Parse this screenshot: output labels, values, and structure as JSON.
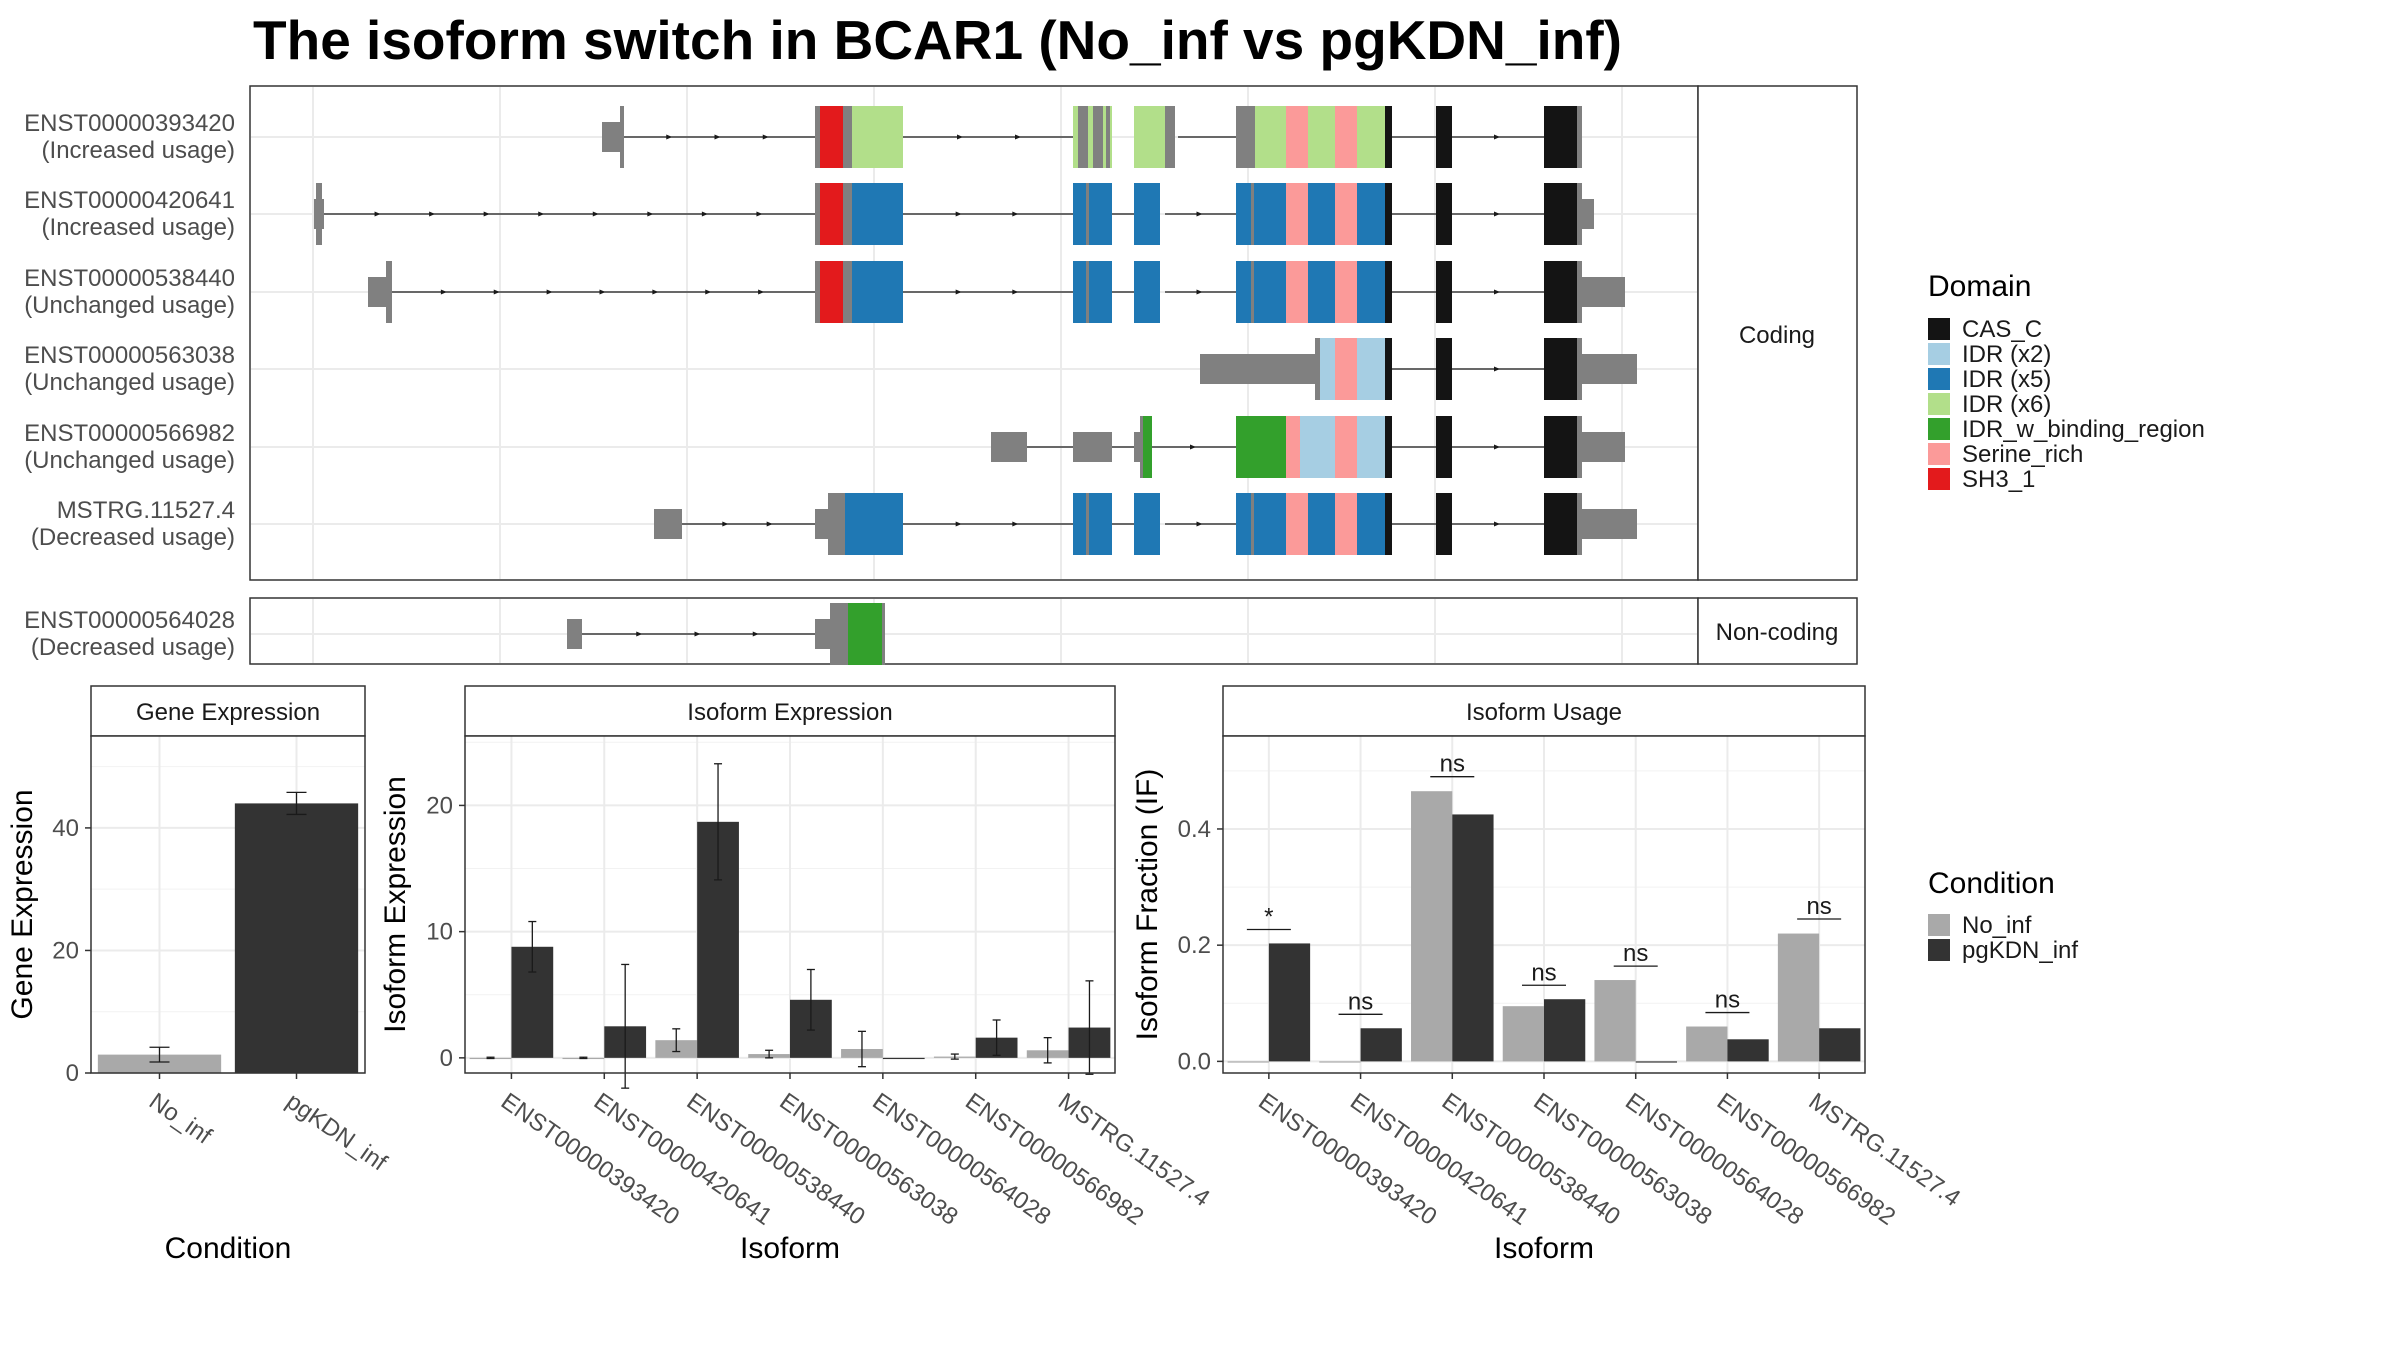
{
  "title": "The isoform switch in BCAR1 (No_inf vs pgKDN_inf)",
  "colors": {
    "exon_gray": "#808080",
    "domains": {
      "CAS_C": "#141414",
      "IDR (x2)": "#A6CEE3",
      "IDR (x5)": "#1F78B4",
      "IDR (x6)": "#B2DF8A",
      "IDR_w_binding_region": "#33A02C",
      "Serine_rich": "#FB9A99",
      "SH3_1": "#E31A1C"
    },
    "conditions": {
      "No_inf": "#A9A9A9",
      "pgKDN_inf": "#333333"
    }
  },
  "structure": {
    "facets": [
      "Coding",
      "Non-coding"
    ],
    "isoforms": [
      {
        "id": "ENST00000393420",
        "usage": "(Increased usage)",
        "facet": "Coding"
      },
      {
        "id": "ENST00000420641",
        "usage": "(Increased usage)",
        "facet": "Coding"
      },
      {
        "id": "ENST00000538440",
        "usage": "(Unchanged usage)",
        "facet": "Coding"
      },
      {
        "id": "ENST00000563038",
        "usage": "(Unchanged usage)",
        "facet": "Coding"
      },
      {
        "id": "ENST00000566982",
        "usage": "(Unchanged usage)",
        "facet": "Coding"
      },
      {
        "id": "MSTRG.11527.4",
        "usage": "(Decreased usage)",
        "facet": "Coding"
      },
      {
        "id": "ENST00000564028",
        "usage": "(Decreased usage)",
        "facet": "Non-coding"
      }
    ]
  },
  "legend_domain": {
    "title": "Domain",
    "items": [
      "CAS_C",
      "IDR (x2)",
      "IDR (x5)",
      "IDR (x6)",
      "IDR_w_binding_region",
      "Serine_rich",
      "SH3_1"
    ]
  },
  "legend_condition": {
    "title": "Condition",
    "items": [
      "No_inf",
      "pgKDN_inf"
    ]
  },
  "chart_data": [
    {
      "type": "bar",
      "panel": "Gene Expression",
      "categories": [
        "No_inf",
        "pgKDN_inf"
      ],
      "values": [
        3.0,
        44.0
      ],
      "errors": [
        1.2,
        1.8
      ],
      "xlabel": "Condition",
      "ylabel": "Gene Expression",
      "ylim": [
        0,
        55
      ],
      "yticks": [
        0,
        20,
        40
      ]
    },
    {
      "type": "bar",
      "panel": "Isoform Expression",
      "categories": [
        "ENST00000393420",
        "ENST00000420641",
        "ENST00000538440",
        "ENST00000563038",
        "ENST00000564028",
        "ENST00000566982",
        "MSTRG.11527.4"
      ],
      "series": [
        {
          "name": "No_inf",
          "values": [
            0.0,
            0.0,
            1.4,
            0.3,
            0.7,
            0.1,
            0.6
          ],
          "errors": [
            0.05,
            0.05,
            0.9,
            0.3,
            1.4,
            0.2,
            1.0
          ]
        },
        {
          "name": "pgKDN_inf",
          "values": [
            8.8,
            2.5,
            18.7,
            4.6,
            0.0,
            1.6,
            2.4
          ],
          "errors": [
            2.0,
            4.9,
            4.6,
            2.4,
            0.0,
            1.4,
            3.7
          ]
        }
      ],
      "xlabel": "Isoform",
      "ylabel": "Isoform Expression",
      "ylim": [
        -1.2,
        25.5
      ],
      "yticks": [
        0,
        10,
        20
      ]
    },
    {
      "type": "bar",
      "panel": "Isoform Usage",
      "categories": [
        "ENST00000393420",
        "ENST00000420641",
        "ENST00000538440",
        "ENST00000563038",
        "ENST00000564028",
        "ENST00000566982",
        "MSTRG.11527.4"
      ],
      "series": [
        {
          "name": "No_inf",
          "values": [
            0.0,
            0.0,
            0.465,
            0.095,
            0.14,
            0.06,
            0.22
          ]
        },
        {
          "name": "pgKDN_inf",
          "values": [
            0.203,
            0.057,
            0.425,
            0.107,
            0.0,
            0.038,
            0.057
          ]
        }
      ],
      "significance": [
        "*",
        "ns",
        "ns",
        "ns",
        "ns",
        "ns",
        "ns"
      ],
      "sig_line_y": [
        0.227,
        0.081,
        0.49,
        0.131,
        0.164,
        0.084,
        0.245
      ],
      "xlabel": "Isoform",
      "ylabel": "Isoform Fraction (IF)",
      "ylim": [
        -0.02,
        0.56
      ],
      "yticks": [
        0.0,
        0.2,
        0.4
      ],
      "ytick_labels": [
        "0.0",
        "0.2",
        "0.4"
      ]
    }
  ]
}
